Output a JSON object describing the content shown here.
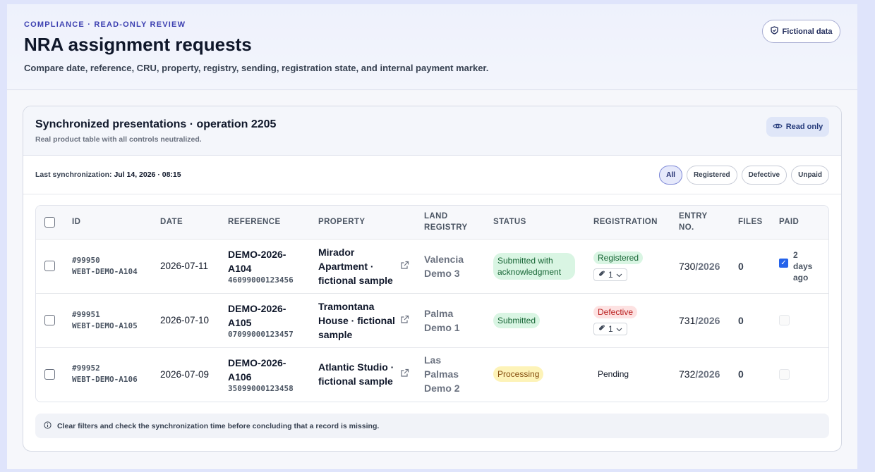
{
  "header": {
    "eyebrow": "COMPLIANCE · READ-ONLY REVIEW",
    "title": "NRA assignment requests",
    "subtitle": "Compare date, reference, CRU, property, registry, sending, registration state, and internal payment marker.",
    "badge": "Fictional data"
  },
  "card": {
    "title": "Synchronized presentations · operation 2205",
    "subtitle": "Real product table with all controls neutralized.",
    "readonly": "Read only",
    "sync_label": "Last synchronization:",
    "sync_value": "Jul 14, 2026 · 08:15",
    "filters": [
      "All",
      "Registered",
      "Defective",
      "Unpaid"
    ],
    "active_filter": "All"
  },
  "table": {
    "columns": [
      "ID",
      "DATE",
      "REFERENCE",
      "PROPERTY",
      "LAND REGISTRY",
      "STATUS",
      "REGISTRATION",
      "ENTRY NO.",
      "FILES",
      "PAID"
    ],
    "rows": [
      {
        "id": "#99950",
        "code": "WEBT-DEMO-A104",
        "date": "2026-07-11",
        "ref": "DEMO-2026-A104",
        "cru": "46099000123456",
        "property": "Mirador Apartment · fictional sample",
        "registry": "Valencia Demo 3",
        "status": "Submitted with acknowledgment",
        "status_color": "green",
        "registration": "Registered",
        "reg_color": "green",
        "reg_files": "1",
        "entry": "730",
        "entry_year": "/2026",
        "files": "0",
        "paid": true,
        "paid_text": "2 days ago"
      },
      {
        "id": "#99951",
        "code": "WEBT-DEMO-A105",
        "date": "2026-07-10",
        "ref": "DEMO-2026-A105",
        "cru": "07099000123457",
        "property": "Tramontana House · fictional sample",
        "registry": "Palma Demo 1",
        "status": "Submitted",
        "status_color": "green",
        "registration": "Defective",
        "reg_color": "red",
        "reg_files": "1",
        "entry": "731",
        "entry_year": "/2026",
        "files": "0",
        "paid": false,
        "paid_text": ""
      },
      {
        "id": "#99952",
        "code": "WEBT-DEMO-A106",
        "date": "2026-07-09",
        "ref": "DEMO-2026-A106",
        "cru": "35099000123458",
        "property": "Atlantic Studio · fictional sample",
        "registry": "Las Palmas Demo 2",
        "status": "Processing",
        "status_color": "yellow",
        "registration": "Pending",
        "reg_color": "none",
        "reg_files": "",
        "entry": "732",
        "entry_year": "/2026",
        "files": "0",
        "paid": false,
        "paid_text": ""
      }
    ]
  },
  "notice": "Clear filters and check the synchronization time before concluding that a record is missing."
}
